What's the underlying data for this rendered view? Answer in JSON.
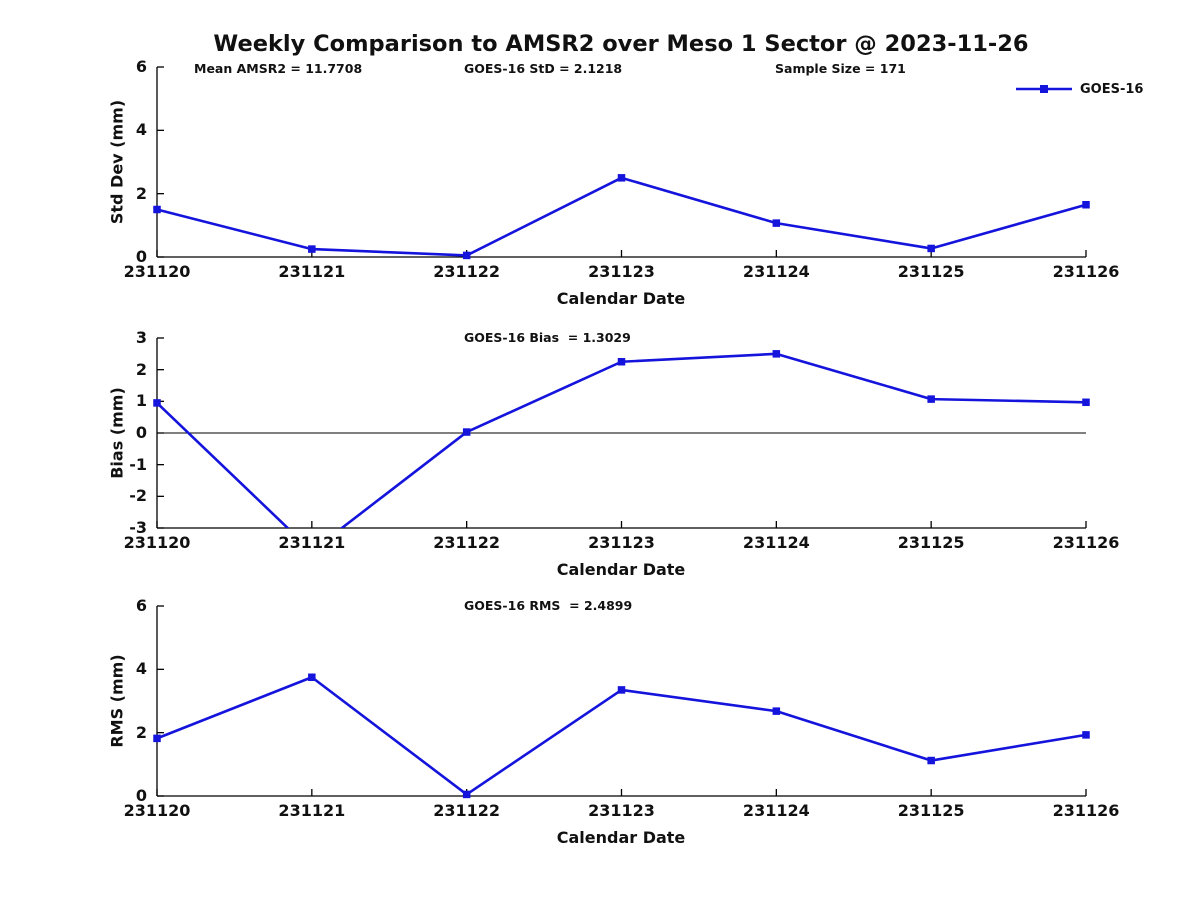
{
  "figure": {
    "title": "Weekly Comparison to AMSR2 over Meso 1 Sector @ 2023-11-26",
    "stats": [
      {
        "text": "Mean AMSR2 = 11.7708"
      },
      {
        "text": "GOES-16 StD = 2.1218"
      },
      {
        "text": "Sample Size = 171"
      }
    ],
    "legend": {
      "label": "GOES-16",
      "line_color": "#1414DC",
      "marker": "square"
    }
  },
  "chart_data": [
    {
      "type": "line",
      "categories": [
        "231120",
        "231121",
        "231122",
        "231123",
        "231124",
        "231125",
        "231126"
      ],
      "series": [
        {
          "name": "GOES-16",
          "values": [
            1.5,
            0.25,
            0.05,
            2.5,
            1.07,
            0.27,
            1.65
          ]
        }
      ],
      "xlabel": "Calendar Date",
      "ylabel": "Std Dev (mm)",
      "ylim": [
        0,
        6
      ],
      "yticks": [
        0,
        2,
        4,
        6
      ],
      "grid": false,
      "zero_line": false,
      "line_color": "#1414DC",
      "marker": "square",
      "legend_position": "top-right-outside"
    },
    {
      "type": "line",
      "annotation": "GOES-16 Bias  = 1.3029",
      "categories": [
        "231120",
        "231121",
        "231122",
        "231123",
        "231124",
        "231125",
        "231126"
      ],
      "series": [
        {
          "name": "GOES-16",
          "values": [
            0.95,
            -3.73,
            0.03,
            2.25,
            2.5,
            1.07,
            0.97
          ]
        }
      ],
      "xlabel": "Calendar Date",
      "ylabel": "Bias (mm)",
      "ylim": [
        -3,
        3
      ],
      "yticks": [
        -3,
        -2,
        -1,
        0,
        1,
        2,
        3
      ],
      "grid": false,
      "zero_line": true,
      "line_color": "#1414DC",
      "marker": "square"
    },
    {
      "type": "line",
      "annotation": "GOES-16 RMS  = 2.4899",
      "categories": [
        "231120",
        "231121",
        "231122",
        "231123",
        "231124",
        "231125",
        "231126"
      ],
      "series": [
        {
          "name": "GOES-16",
          "values": [
            1.82,
            3.75,
            0.05,
            3.35,
            2.68,
            1.12,
            1.93
          ]
        }
      ],
      "xlabel": "Calendar Date",
      "ylabel": "RMS (mm)",
      "ylim": [
        0,
        6
      ],
      "yticks": [
        0,
        2,
        4,
        6
      ],
      "grid": false,
      "zero_line": false,
      "line_color": "#1414DC",
      "marker": "square"
    }
  ]
}
